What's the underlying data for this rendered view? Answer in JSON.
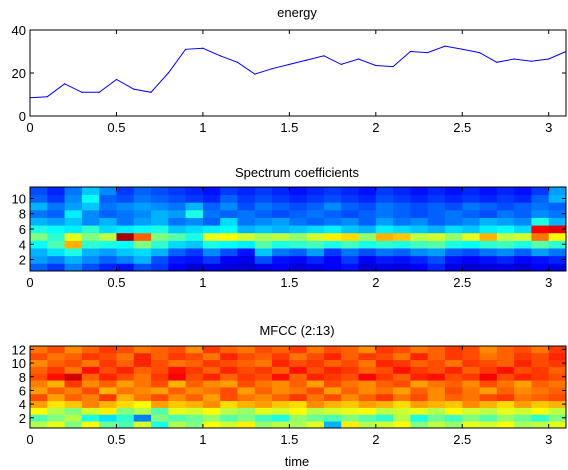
{
  "chart_data": [
    {
      "type": "line",
      "title": "energy",
      "xlabel": "",
      "ylabel": "",
      "xlim": [
        0,
        3.1
      ],
      "ylim": [
        0,
        40
      ],
      "xticks": [
        "0",
        "0.5",
        "1",
        "1.5",
        "2",
        "2.5",
        "3"
      ],
      "yticks": [
        "0",
        "20",
        "40"
      ],
      "color": "#0000ff",
      "x": [
        0,
        0.1,
        0.2,
        0.3,
        0.4,
        0.5,
        0.6,
        0.7,
        0.8,
        0.9,
        1.0,
        1.1,
        1.2,
        1.3,
        1.4,
        1.5,
        1.6,
        1.7,
        1.8,
        1.9,
        2.0,
        2.1,
        2.2,
        2.3,
        2.4,
        2.5,
        2.6,
        2.7,
        2.8,
        2.9,
        3.0,
        3.1
      ],
      "y": [
        8.5,
        9,
        15,
        11,
        11,
        17,
        12.5,
        11,
        20,
        31,
        31.5,
        28,
        25,
        19.5,
        22,
        24,
        26,
        28,
        24,
        26.5,
        23.5,
        23,
        30,
        29.5,
        32.5,
        31,
        29.5,
        25,
        26.5,
        25.5,
        26.5,
        30
      ]
    },
    {
      "type": "heatmap",
      "title": "Spectrum coefficients",
      "xlabel": "",
      "ylabel": "",
      "xlim": [
        0,
        3.1
      ],
      "xticks": [
        "0",
        "0.5",
        "1",
        "1.5",
        "2",
        "2.5",
        "3"
      ],
      "yticks": [
        "2",
        "4",
        "6",
        "8",
        "10"
      ],
      "colormap": "jet",
      "rows": 11,
      "cols": 31,
      "values": [
        [
          0.22,
          0.18,
          0.25,
          0.2,
          0.16,
          0.14,
          0.2,
          0.18,
          0.12,
          0.08,
          0.1,
          0.09,
          0.08,
          0.1,
          0.12,
          0.08,
          0.1,
          0.12,
          0.14,
          0.08,
          0.1,
          0.09,
          0.12,
          0.16,
          0.1,
          0.08,
          0.09,
          0.1,
          0.08,
          0.12,
          0.1
        ],
        [
          0.28,
          0.25,
          0.3,
          0.26,
          0.22,
          0.25,
          0.3,
          0.2,
          0.15,
          0.14,
          0.18,
          0.12,
          0.1,
          0.2,
          0.14,
          0.13,
          0.16,
          0.12,
          0.18,
          0.12,
          0.15,
          0.14,
          0.16,
          0.2,
          0.14,
          0.12,
          0.14,
          0.16,
          0.13,
          0.14,
          0.16
        ],
        [
          0.3,
          0.35,
          0.4,
          0.3,
          0.28,
          0.32,
          0.34,
          0.3,
          0.22,
          0.18,
          0.26,
          0.2,
          0.14,
          0.32,
          0.24,
          0.22,
          0.28,
          0.18,
          0.24,
          0.2,
          0.24,
          0.22,
          0.26,
          0.28,
          0.22,
          0.2,
          0.24,
          0.26,
          0.22,
          0.28,
          0.24
        ],
        [
          0.38,
          0.45,
          0.7,
          0.42,
          0.4,
          0.38,
          0.5,
          0.42,
          0.34,
          0.32,
          0.4,
          0.38,
          0.36,
          0.46,
          0.4,
          0.42,
          0.44,
          0.4,
          0.44,
          0.4,
          0.42,
          0.4,
          0.44,
          0.46,
          0.4,
          0.38,
          0.42,
          0.44,
          0.4,
          0.46,
          0.42
        ],
        [
          0.5,
          0.42,
          0.6,
          0.5,
          0.56,
          0.96,
          0.78,
          0.5,
          0.46,
          0.4,
          0.6,
          0.62,
          0.58,
          0.54,
          0.56,
          0.52,
          0.58,
          0.64,
          0.66,
          0.52,
          0.7,
          0.68,
          0.56,
          0.58,
          0.52,
          0.6,
          0.7,
          0.56,
          0.58,
          0.76,
          0.62
        ],
        [
          0.4,
          0.38,
          0.36,
          0.42,
          0.34,
          0.36,
          0.38,
          0.4,
          0.32,
          0.34,
          0.36,
          0.38,
          0.3,
          0.32,
          0.3,
          0.32,
          0.34,
          0.36,
          0.32,
          0.3,
          0.36,
          0.34,
          0.32,
          0.3,
          0.34,
          0.32,
          0.36,
          0.38,
          0.34,
          0.88,
          0.9
        ],
        [
          0.3,
          0.28,
          0.32,
          0.26,
          0.3,
          0.24,
          0.28,
          0.3,
          0.24,
          0.26,
          0.22,
          0.34,
          0.24,
          0.26,
          0.28,
          0.24,
          0.22,
          0.24,
          0.26,
          0.22,
          0.28,
          0.24,
          0.26,
          0.22,
          0.24,
          0.26,
          0.3,
          0.28,
          0.26,
          0.4,
          0.3
        ],
        [
          0.24,
          0.22,
          0.36,
          0.26,
          0.22,
          0.24,
          0.26,
          0.3,
          0.28,
          0.4,
          0.24,
          0.22,
          0.24,
          0.22,
          0.2,
          0.22,
          0.24,
          0.22,
          0.2,
          0.22,
          0.24,
          0.22,
          0.2,
          0.22,
          0.24,
          0.22,
          0.2,
          0.24,
          0.22,
          0.26,
          0.24
        ],
        [
          0.3,
          0.24,
          0.28,
          0.32,
          0.24,
          0.26,
          0.28,
          0.26,
          0.24,
          0.3,
          0.22,
          0.26,
          0.2,
          0.24,
          0.22,
          0.2,
          0.22,
          0.26,
          0.22,
          0.2,
          0.24,
          0.22,
          0.2,
          0.22,
          0.2,
          0.24,
          0.22,
          0.2,
          0.22,
          0.24,
          0.22
        ],
        [
          0.22,
          0.18,
          0.26,
          0.38,
          0.22,
          0.2,
          0.24,
          0.22,
          0.2,
          0.18,
          0.16,
          0.22,
          0.18,
          0.2,
          0.18,
          0.16,
          0.18,
          0.2,
          0.18,
          0.16,
          0.2,
          0.18,
          0.16,
          0.18,
          0.16,
          0.18,
          0.16,
          0.18,
          0.16,
          0.22,
          0.3
        ],
        [
          0.2,
          0.16,
          0.24,
          0.32,
          0.26,
          0.18,
          0.22,
          0.2,
          0.18,
          0.16,
          0.14,
          0.18,
          0.16,
          0.18,
          0.16,
          0.14,
          0.16,
          0.18,
          0.16,
          0.14,
          0.18,
          0.16,
          0.14,
          0.16,
          0.14,
          0.16,
          0.14,
          0.16,
          0.14,
          0.18,
          0.28
        ]
      ]
    },
    {
      "type": "heatmap",
      "title": "MFCC (2:13)",
      "xlabel": "time",
      "ylabel": "",
      "xlim": [
        0,
        3.1
      ],
      "xticks": [
        "0",
        "0.5",
        "1",
        "1.5",
        "2",
        "2.5",
        "3"
      ],
      "yticks": [
        "2",
        "4",
        "6",
        "8",
        "10",
        "12"
      ],
      "colormap": "jet",
      "rows": 12,
      "cols": 31,
      "values": [
        [
          0.55,
          0.6,
          0.5,
          0.62,
          0.48,
          0.45,
          0.58,
          0.4,
          0.55,
          0.5,
          0.62,
          0.58,
          0.64,
          0.52,
          0.56,
          0.54,
          0.6,
          0.3,
          0.64,
          0.55,
          0.58,
          0.62,
          0.5,
          0.56,
          0.52,
          0.6,
          0.58,
          0.62,
          0.54,
          0.56,
          0.6
        ],
        [
          0.45,
          0.5,
          0.55,
          0.4,
          0.35,
          0.42,
          0.25,
          0.5,
          0.45,
          0.48,
          0.52,
          0.46,
          0.5,
          0.44,
          0.4,
          0.52,
          0.48,
          0.45,
          0.5,
          0.46,
          0.42,
          0.55,
          0.4,
          0.48,
          0.44,
          0.5,
          0.46,
          0.52,
          0.48,
          0.42,
          0.5
        ],
        [
          0.62,
          0.55,
          0.5,
          0.58,
          0.64,
          0.5,
          0.55,
          0.46,
          0.6,
          0.58,
          0.62,
          0.56,
          0.52,
          0.6,
          0.58,
          0.62,
          0.55,
          0.58,
          0.6,
          0.62,
          0.56,
          0.58,
          0.6,
          0.55,
          0.62,
          0.58,
          0.56,
          0.6,
          0.58,
          0.62,
          0.56
        ],
        [
          0.72,
          0.65,
          0.68,
          0.75,
          0.7,
          0.66,
          0.62,
          0.72,
          0.68,
          0.7,
          0.74,
          0.66,
          0.7,
          0.72,
          0.68,
          0.66,
          0.74,
          0.7,
          0.68,
          0.72,
          0.7,
          0.66,
          0.72,
          0.7,
          0.68,
          0.74,
          0.7,
          0.66,
          0.72,
          0.68,
          0.7
        ],
        [
          0.8,
          0.72,
          0.78,
          0.75,
          0.82,
          0.7,
          0.76,
          0.8,
          0.74,
          0.78,
          0.72,
          0.8,
          0.76,
          0.74,
          0.78,
          0.82,
          0.76,
          0.8,
          0.74,
          0.78,
          0.82,
          0.76,
          0.8,
          0.74,
          0.78,
          0.76,
          0.8,
          0.82,
          0.76,
          0.78,
          0.8
        ],
        [
          0.72,
          0.78,
          0.75,
          0.8,
          0.7,
          0.76,
          0.74,
          0.72,
          0.78,
          0.74,
          0.76,
          0.8,
          0.72,
          0.78,
          0.74,
          0.76,
          0.8,
          0.72,
          0.78,
          0.74,
          0.76,
          0.72,
          0.78,
          0.74,
          0.8,
          0.76,
          0.72,
          0.78,
          0.74,
          0.76,
          0.78
        ],
        [
          0.75,
          0.7,
          0.82,
          0.74,
          0.78,
          0.72,
          0.76,
          0.8,
          0.7,
          0.78,
          0.74,
          0.72,
          0.8,
          0.76,
          0.74,
          0.78,
          0.72,
          0.8,
          0.76,
          0.74,
          0.78,
          0.8,
          0.72,
          0.76,
          0.78,
          0.74,
          0.8,
          0.76,
          0.72,
          0.78,
          0.76
        ],
        [
          0.8,
          0.86,
          0.92,
          0.78,
          0.84,
          0.8,
          0.76,
          0.82,
          0.88,
          0.8,
          0.84,
          0.78,
          0.82,
          0.8,
          0.86,
          0.78,
          0.84,
          0.82,
          0.8,
          0.88,
          0.82,
          0.78,
          0.84,
          0.86,
          0.8,
          0.82,
          0.88,
          0.8,
          0.84,
          0.82,
          0.8
        ],
        [
          0.78,
          0.82,
          0.76,
          0.86,
          0.8,
          0.84,
          0.78,
          0.8,
          0.86,
          0.82,
          0.78,
          0.84,
          0.8,
          0.82,
          0.78,
          0.86,
          0.8,
          0.84,
          0.82,
          0.78,
          0.8,
          0.86,
          0.82,
          0.8,
          0.84,
          0.78,
          0.82,
          0.86,
          0.8,
          0.82,
          0.78
        ],
        [
          0.74,
          0.78,
          0.8,
          0.76,
          0.82,
          0.78,
          0.84,
          0.8,
          0.76,
          0.78,
          0.82,
          0.8,
          0.78,
          0.76,
          0.84,
          0.8,
          0.82,
          0.78,
          0.8,
          0.76,
          0.84,
          0.82,
          0.78,
          0.8,
          0.76,
          0.82,
          0.8,
          0.78,
          0.84,
          0.8,
          0.82
        ],
        [
          0.8,
          0.76,
          0.78,
          0.82,
          0.8,
          0.76,
          0.84,
          0.78,
          0.82,
          0.8,
          0.76,
          0.84,
          0.8,
          0.78,
          0.82,
          0.76,
          0.8,
          0.84,
          0.78,
          0.82,
          0.8,
          0.76,
          0.84,
          0.78,
          0.82,
          0.8,
          0.76,
          0.78,
          0.82,
          0.8,
          0.84
        ],
        [
          0.76,
          0.8,
          0.74,
          0.78,
          0.82,
          0.8,
          0.76,
          0.78,
          0.8,
          0.74,
          0.82,
          0.78,
          0.76,
          0.8,
          0.78,
          0.82,
          0.76,
          0.8,
          0.78,
          0.74,
          0.82,
          0.8,
          0.76,
          0.78,
          0.82,
          0.8,
          0.74,
          0.78,
          0.8,
          0.76,
          0.82
        ]
      ]
    }
  ]
}
